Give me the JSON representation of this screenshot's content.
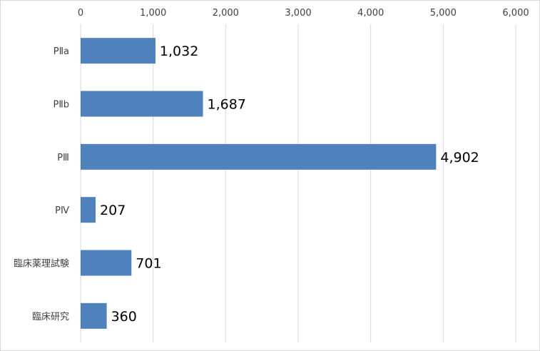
{
  "chart_data": {
    "type": "bar",
    "orientation": "horizontal",
    "categories": [
      "PⅡa",
      "PⅡb",
      "PⅢ",
      "PⅣ",
      "臨床薬理試験",
      "臨床研究"
    ],
    "values": [
      1032,
      1687,
      4902,
      207,
      701,
      360
    ],
    "data_labels": [
      "1,032",
      "1,687",
      "4,902",
      "207",
      "701",
      "360"
    ],
    "x_ticks": [
      "0",
      "1,000",
      "2,000",
      "3,000",
      "4,000",
      "5,000",
      "6,000"
    ],
    "xlim": [
      0,
      6000
    ],
    "x_axis_position": "top",
    "grid": true,
    "bar_color": "#4f81bd",
    "legend": "none"
  }
}
